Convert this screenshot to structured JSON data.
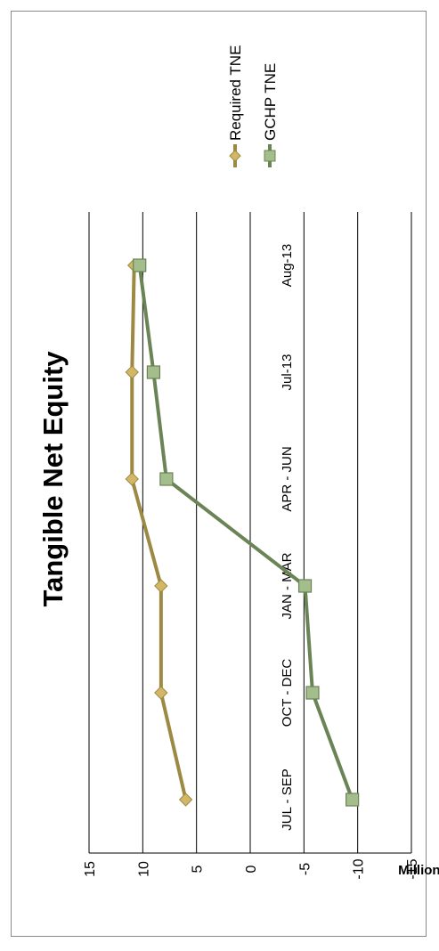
{
  "chart_data": {
    "type": "line",
    "title": "Tangible Net Equity",
    "ylabel": "Millions",
    "xlabel": "",
    "categories": [
      "JUL - SEP",
      "OCT - DEC",
      "JAN - MAR",
      "APR - JUN",
      "Jul-13",
      "Aug-13"
    ],
    "ylim": [
      -15,
      15
    ],
    "yticks": [
      15,
      10,
      5,
      0,
      -5,
      -10,
      -15
    ],
    "grid": true,
    "legend_position": "right",
    "orientation": "rotated-90",
    "series": [
      {
        "name": "Required TNE",
        "values": [
          6.0,
          8.3,
          8.3,
          11.0,
          11.0,
          10.8
        ],
        "color": "#9c8a44",
        "marker": "diamond",
        "marker_color": "#d4b766"
      },
      {
        "name": "GCHP TNE",
        "values": [
          -9.5,
          -5.8,
          -5.1,
          7.8,
          9.0,
          10.3
        ],
        "color": "#6a8455",
        "marker": "square",
        "marker_color": "#a3be8c"
      }
    ]
  }
}
